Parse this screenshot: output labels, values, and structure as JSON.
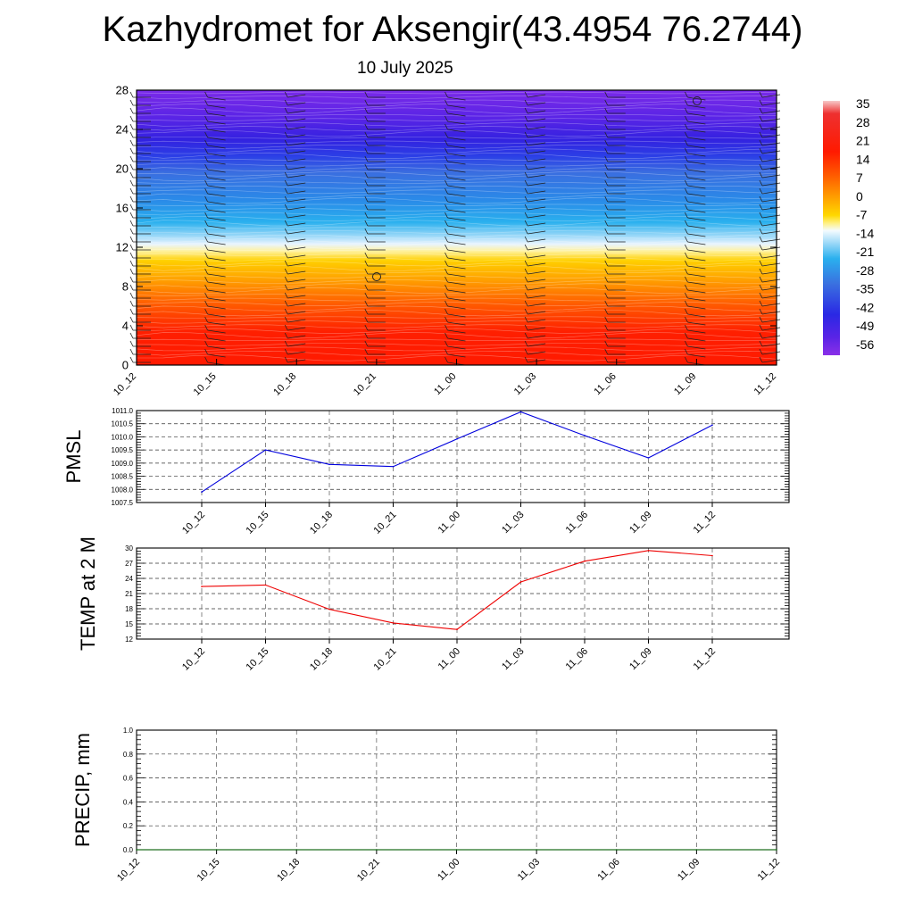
{
  "title": "Kazhydromet for Aksengir(43.4954 76.2744)",
  "subtitle": "10 July 2025",
  "time_labels": [
    "10_12",
    "10_15",
    "10_18",
    "10_21",
    "11_00",
    "11_03",
    "11_06",
    "11_09",
    "11_12"
  ],
  "chart_data": [
    {
      "type": "heatmap",
      "y_ticks": [
        0,
        4,
        8,
        12,
        16,
        20,
        24,
        28
      ],
      "ylim": [
        0,
        28
      ],
      "x_categories": [
        "10_12",
        "10_15",
        "10_18",
        "10_21",
        "11_00",
        "11_03",
        "11_06",
        "11_09",
        "11_12"
      ],
      "colorbar_labels": [
        "35",
        "28",
        "21",
        "14",
        "7",
        "0",
        "-7",
        "-14",
        "-21",
        "-28",
        "-35",
        "-42",
        "-49",
        "-56"
      ],
      "colorbar_range": [
        -60,
        38
      ],
      "colors": {
        "cold": "#6a1fe0",
        "cool": "#1e88ff",
        "transition": "#ffffff",
        "warm": "#ffd400",
        "hot": "#ff1a00"
      }
    },
    {
      "type": "line",
      "ylabel": "PMSL",
      "y_ticks": [
        "1011.0",
        "1010.5",
        "1010.0",
        "1009.5",
        "1009.0",
        "1008.5",
        "1008.0",
        "1007.5"
      ],
      "ylim": [
        1007.5,
        1011.0
      ],
      "x": [
        "10_12",
        "10_15",
        "10_18",
        "10_21",
        "11_00",
        "11_03",
        "11_06",
        "11_09",
        "11_12"
      ],
      "values": [
        1007.9,
        1009.5,
        1008.95,
        1008.87,
        1009.92,
        1010.95,
        1010.05,
        1009.2,
        1010.45
      ],
      "color": "#0000dd"
    },
    {
      "type": "line",
      "ylabel": "TEMP at 2 M",
      "y_ticks": [
        "30",
        "27",
        "24",
        "21",
        "18",
        "15",
        "12"
      ],
      "ylim": [
        12,
        30
      ],
      "x": [
        "10_12",
        "10_15",
        "10_18",
        "10_21",
        "11_00",
        "11_03",
        "11_06",
        "11_09",
        "11_12"
      ],
      "values": [
        22.4,
        22.7,
        17.9,
        15.2,
        13.9,
        23.3,
        27.4,
        29.5,
        28.5
      ],
      "color": "#ee0000"
    },
    {
      "type": "line",
      "ylabel": "PRECIP, mm",
      "y_ticks": [
        "1.0",
        "0.8",
        "0.6",
        "0.4",
        "0.2",
        "0.0"
      ],
      "ylim": [
        0,
        1
      ],
      "x": [
        "10_12",
        "10_15",
        "10_18",
        "10_21",
        "11_00",
        "11_03",
        "11_06",
        "11_09",
        "11_12"
      ],
      "values": [
        0,
        0,
        0,
        0,
        0,
        0,
        0,
        0,
        0
      ],
      "color": "#006400"
    }
  ]
}
